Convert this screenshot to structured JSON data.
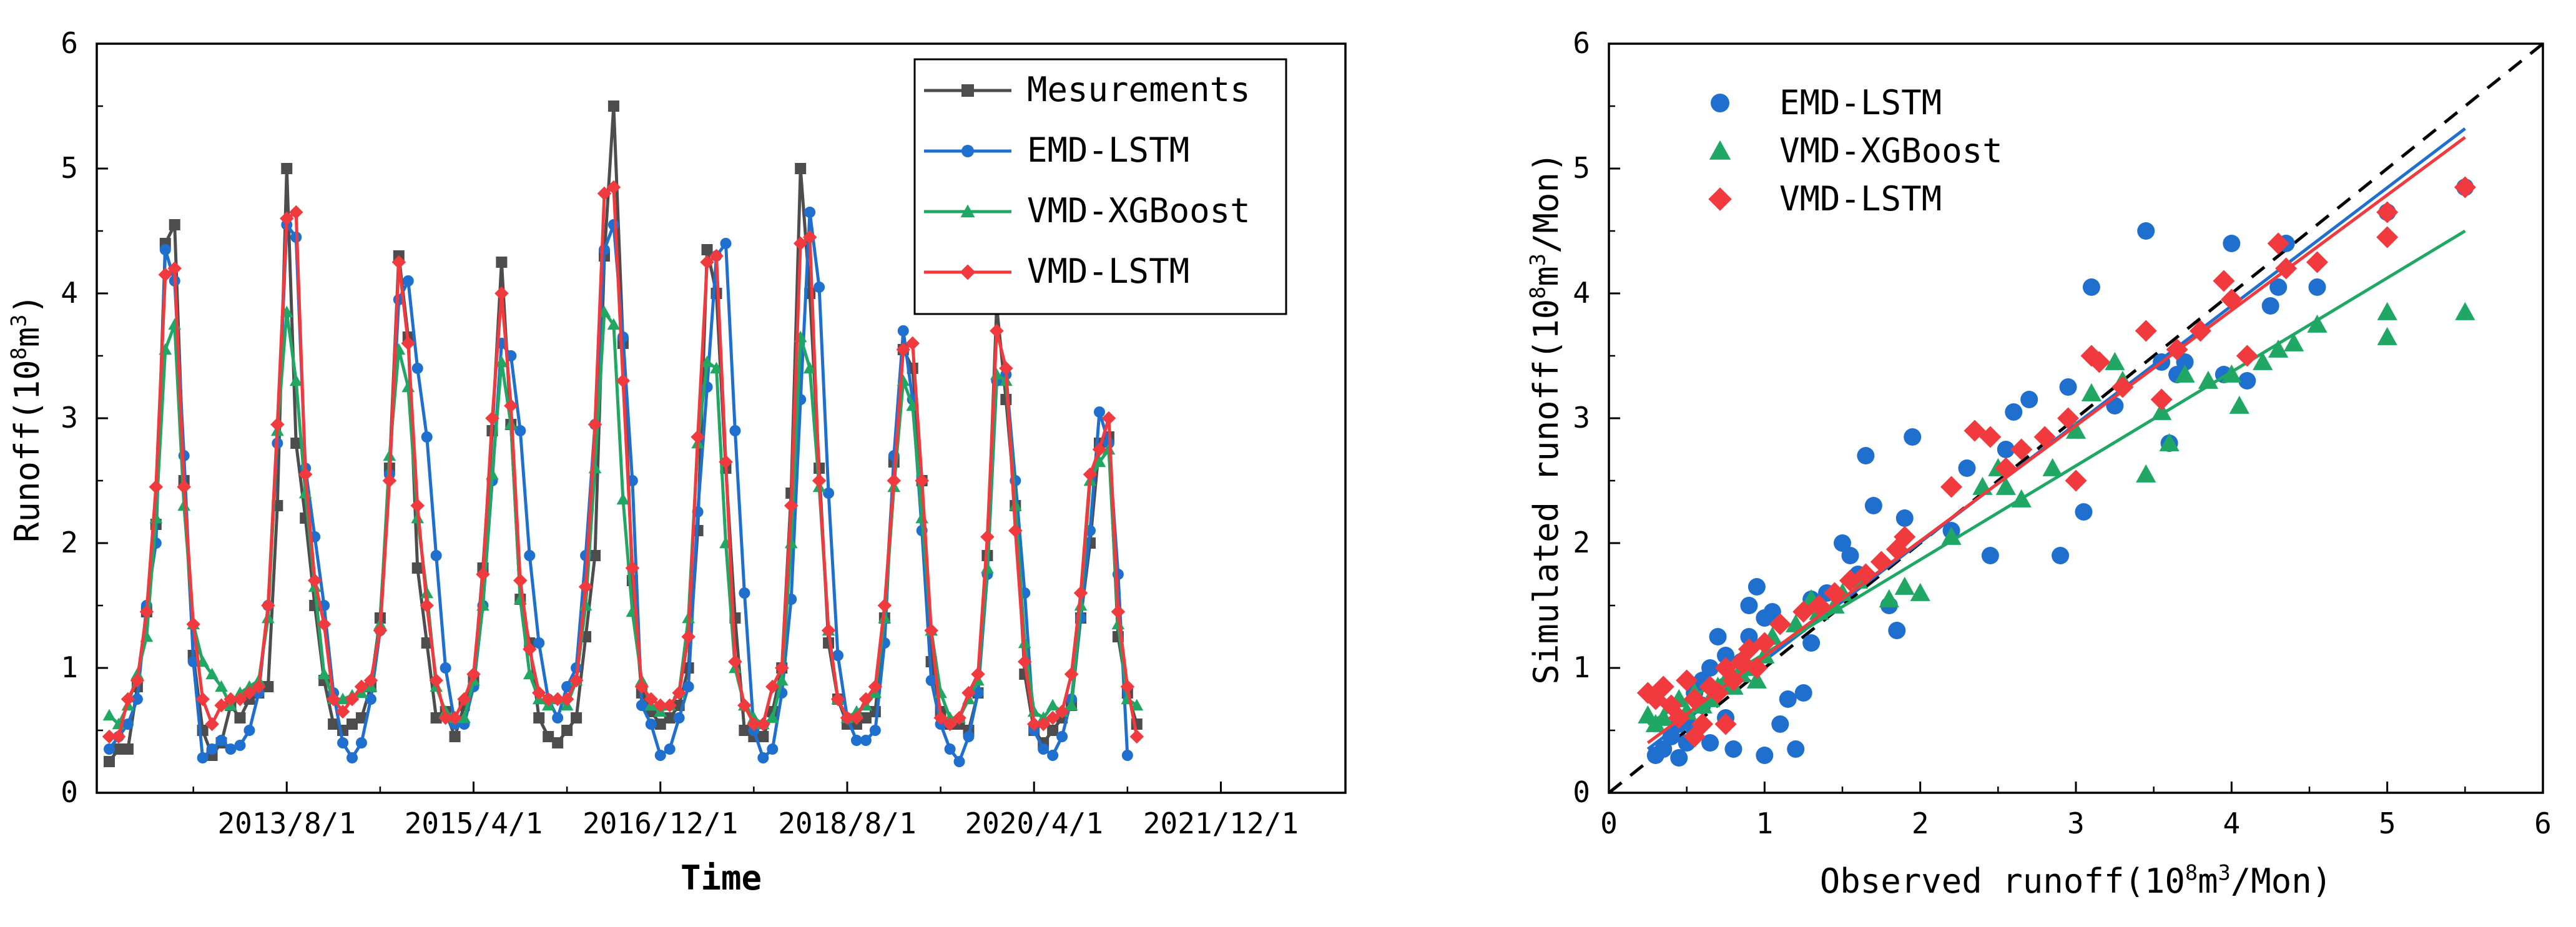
{
  "chart_data": [
    {
      "type": "line",
      "title": "",
      "xlabel": "Time",
      "ylabel": "Runoff",
      "ylabel_unit": "(10",
      "ylabel_sup": "8",
      "ylabel_end": "m",
      "ylabel_sup2": "3",
      "ylabel_close": ")",
      "ylim": [
        0,
        6
      ],
      "yticks": [
        "0",
        "1",
        "2",
        "3",
        "4",
        "5",
        "6"
      ],
      "x_index_range": [
        0,
        131
      ],
      "xticks": [
        {
          "i": 19,
          "label": "2013/8/1"
        },
        {
          "i": 39,
          "label": "2015/4/1"
        },
        {
          "i": 59,
          "label": "2016/12/1"
        },
        {
          "i": 79,
          "label": "2018/8/1"
        },
        {
          "i": 99,
          "label": "2020/4/1"
        },
        {
          "i": 119,
          "label": "2021/12/1"
        }
      ],
      "grid": false,
      "legend_position": "top-right",
      "series": [
        {
          "name": "Mesurements",
          "color": "#4d4d4d",
          "marker": "square",
          "values": [
            0.25,
            0.35,
            0.35,
            0.85,
            1.45,
            2.15,
            4.4,
            4.55,
            2.5,
            1.1,
            0.5,
            0.3,
            0.4,
            0.7,
            0.6,
            0.75,
            0.8,
            0.85,
            2.3,
            5.0,
            2.8,
            2.2,
            1.5,
            0.9,
            0.55,
            0.5,
            0.55,
            0.6,
            0.85,
            1.4,
            2.6,
            4.3,
            3.65,
            1.8,
            1.2,
            0.6,
            0.65,
            0.45,
            0.7,
            0.9,
            1.8,
            2.9,
            4.25,
            2.95,
            1.55,
            1.2,
            0.6,
            0.45,
            0.4,
            0.5,
            0.6,
            1.25,
            1.9,
            4.3,
            5.5,
            3.6,
            1.7,
            0.8,
            0.65,
            0.55,
            0.6,
            0.7,
            1.0,
            2.1,
            4.35,
            4.0,
            2.6,
            1.4,
            0.5,
            0.45,
            0.45,
            0.65,
            1.0,
            2.4,
            5.0,
            4.0,
            2.6,
            1.2,
            0.75,
            0.55,
            0.55,
            0.6,
            0.65,
            1.4,
            2.65,
            3.55,
            3.4,
            2.5,
            1.05,
            0.65,
            0.55,
            0.55,
            0.5,
            0.8,
            1.9,
            3.9,
            3.15,
            2.3,
            0.95,
            0.5,
            0.4,
            0.5,
            0.6,
            0.7,
            1.4,
            2.0,
            2.8,
            2.85,
            1.25,
            0.8,
            0.55
          ]
        },
        {
          "name": "EMD-LSTM",
          "color": "#1f6fcf",
          "marker": "circle",
          "values": [
            0.35,
            0.45,
            0.55,
            0.75,
            1.5,
            2.0,
            4.35,
            4.1,
            2.7,
            1.05,
            0.28,
            0.35,
            0.42,
            0.35,
            0.38,
            0.5,
            0.8,
            1.5,
            2.8,
            4.55,
            4.45,
            2.6,
            2.05,
            1.5,
            0.8,
            0.4,
            0.28,
            0.4,
            0.75,
            1.3,
            2.55,
            3.95,
            4.1,
            3.4,
            2.85,
            1.9,
            1.0,
            0.55,
            0.55,
            0.85,
            1.5,
            2.5,
            3.6,
            3.5,
            2.9,
            1.9,
            1.2,
            0.75,
            0.6,
            0.85,
            1.0,
            1.9,
            2.95,
            4.35,
            4.55,
            3.65,
            2.5,
            0.7,
            0.55,
            0.3,
            0.35,
            0.6,
            0.85,
            2.25,
            3.25,
            4.3,
            4.4,
            2.9,
            1.6,
            0.5,
            0.28,
            0.35,
            0.8,
            1.55,
            3.15,
            4.65,
            4.05,
            2.4,
            1.1,
            0.6,
            0.42,
            0.42,
            0.5,
            1.2,
            2.7,
            3.7,
            3.15,
            2.1,
            0.9,
            0.55,
            0.35,
            0.25,
            0.45,
            0.8,
            1.75,
            3.3,
            3.35,
            2.5,
            1.6,
            0.5,
            0.35,
            0.3,
            0.45,
            0.75,
            1.4,
            2.1,
            3.05,
            2.8,
            1.75,
            0.3
          ]
        },
        {
          "name": "VMD-XGBoost",
          "color": "#21a764",
          "marker": "triangle",
          "values": [
            0.62,
            0.55,
            0.7,
            0.95,
            1.25,
            2.2,
            3.55,
            3.75,
            2.3,
            1.35,
            1.05,
            0.95,
            0.85,
            0.7,
            0.8,
            0.85,
            0.9,
            1.4,
            2.9,
            3.85,
            3.3,
            2.4,
            1.65,
            0.95,
            0.75,
            0.75,
            0.78,
            0.8,
            0.85,
            1.35,
            2.7,
            3.55,
            3.25,
            2.2,
            1.6,
            0.85,
            0.65,
            0.6,
            0.6,
            0.9,
            1.5,
            2.55,
            3.45,
            2.95,
            1.55,
            0.95,
            0.75,
            0.7,
            0.75,
            0.7,
            0.9,
            1.5,
            2.6,
            3.85,
            3.75,
            2.35,
            1.45,
            0.9,
            0.7,
            0.65,
            0.7,
            0.8,
            1.4,
            2.8,
            3.45,
            3.4,
            2.0,
            1.0,
            0.7,
            0.6,
            0.55,
            0.6,
            0.9,
            2.0,
            3.65,
            3.4,
            2.45,
            1.3,
            0.75,
            0.6,
            0.65,
            0.7,
            0.8,
            1.4,
            2.45,
            3.3,
            3.1,
            2.2,
            1.3,
            0.8,
            0.6,
            0.6,
            0.75,
            0.9,
            1.8,
            3.35,
            3.3,
            2.3,
            1.2,
            0.65,
            0.6,
            0.7,
            0.65,
            0.7,
            1.5,
            2.5,
            2.65,
            2.75,
            1.35,
            0.75,
            0.7
          ]
        },
        {
          "name": "VMD-LSTM",
          "color": "#f03a3e",
          "marker": "diamond",
          "values": [
            0.45,
            0.45,
            0.75,
            0.9,
            1.45,
            2.45,
            4.15,
            4.2,
            2.45,
            1.35,
            0.75,
            0.55,
            0.7,
            0.75,
            0.75,
            0.8,
            0.85,
            1.5,
            2.95,
            4.6,
            4.65,
            2.55,
            1.7,
            1.35,
            0.75,
            0.65,
            0.75,
            0.85,
            0.9,
            1.3,
            2.5,
            4.25,
            3.6,
            2.3,
            1.5,
            0.9,
            0.6,
            0.6,
            0.75,
            0.95,
            1.75,
            3.0,
            4.0,
            3.1,
            1.7,
            1.15,
            0.8,
            0.75,
            0.75,
            0.75,
            0.9,
            1.65,
            2.95,
            4.8,
            4.85,
            3.3,
            1.8,
            0.85,
            0.75,
            0.7,
            0.7,
            0.8,
            1.25,
            2.85,
            4.25,
            4.3,
            2.65,
            1.05,
            0.7,
            0.55,
            0.55,
            0.85,
            1.0,
            2.3,
            4.4,
            4.45,
            2.5,
            1.3,
            0.75,
            0.6,
            0.6,
            0.75,
            0.85,
            1.5,
            2.5,
            3.55,
            3.6,
            2.5,
            1.3,
            0.6,
            0.55,
            0.6,
            0.8,
            0.95,
            2.05,
            3.7,
            3.4,
            2.1,
            1.05,
            0.55,
            0.55,
            0.6,
            0.65,
            0.95,
            1.6,
            2.55,
            2.75,
            3.0,
            1.45,
            0.85,
            0.45
          ]
        }
      ]
    },
    {
      "type": "scatter",
      "title": "",
      "xlabel": "Observed runoff",
      "xlabel_unit": "(10",
      "xlabel_sup": "8",
      "xlabel_end": "m",
      "xlabel_sup2": "3",
      "xlabel_close": "/Mon)",
      "ylabel": "Simulated runoff",
      "ylabel_unit": "(10",
      "ylabel_sup": "8",
      "ylabel_end": "m",
      "ylabel_sup2": "3",
      "ylabel_close": "/Mon)",
      "xlim": [
        0,
        6
      ],
      "ylim": [
        0,
        6
      ],
      "xticks": [
        "0",
        "1",
        "2",
        "3",
        "4",
        "5",
        "6"
      ],
      "yticks": [
        "0",
        "1",
        "2",
        "3",
        "4",
        "5",
        "6"
      ],
      "grid": false,
      "legend_position": "top-left",
      "reference_line": {
        "style": "dashed",
        "color": "#000000",
        "x": [
          0,
          6
        ],
        "y": [
          0,
          6
        ]
      },
      "series": [
        {
          "name": "EMD-LSTM",
          "color": "#1f6fcf",
          "marker": "circle",
          "fit": {
            "x": [
              0.25,
              5.5
            ],
            "y": [
              0.35,
              5.32
            ]
          },
          "x": [
            0.3,
            0.35,
            0.4,
            0.45,
            0.5,
            0.5,
            0.55,
            0.6,
            0.6,
            0.65,
            0.7,
            0.75,
            0.8,
            0.85,
            0.9,
            0.95,
            1.0,
            1.05,
            1.1,
            1.2,
            1.25,
            1.3,
            1.4,
            1.5,
            1.55,
            1.6,
            1.65,
            1.7,
            1.8,
            1.85,
            1.9,
            1.95,
            2.2,
            2.3,
            2.45,
            2.55,
            2.6,
            2.7,
            2.9,
            2.95,
            3.05,
            3.1,
            3.25,
            3.45,
            3.55,
            3.6,
            3.65,
            3.7,
            3.95,
            4.0,
            4.1,
            4.25,
            4.3,
            4.35,
            4.55,
            5.0,
            5.5,
            0.45,
            0.55,
            0.65,
            0.75,
            0.9,
            1.0,
            1.15,
            1.3
          ],
          "y": [
            0.3,
            0.35,
            0.45,
            0.28,
            0.4,
            0.6,
            0.5,
            0.9,
            0.7,
            0.4,
            1.25,
            0.6,
            0.35,
            1.05,
            1.5,
            1.65,
            0.3,
            1.45,
            0.55,
            0.35,
            0.8,
            1.2,
            1.6,
            2.0,
            1.9,
            1.75,
            2.7,
            2.3,
            1.5,
            1.3,
            2.2,
            2.85,
            2.1,
            2.6,
            1.9,
            2.75,
            3.05,
            3.15,
            1.9,
            3.25,
            2.25,
            4.05,
            3.1,
            4.5,
            3.45,
            2.8,
            3.35,
            3.45,
            3.35,
            4.4,
            3.3,
            3.9,
            4.05,
            4.4,
            4.05,
            4.65,
            4.85,
            0.55,
            0.8,
            1.0,
            1.1,
            1.25,
            1.4,
            0.75,
            1.55
          ]
        },
        {
          "name": "VMD-XGBoost",
          "color": "#21a764",
          "marker": "triangle",
          "fit": {
            "x": [
              0.25,
              5.5
            ],
            "y": [
              0.55,
              4.5
            ]
          },
          "x": [
            0.25,
            0.3,
            0.35,
            0.4,
            0.45,
            0.5,
            0.55,
            0.6,
            0.65,
            0.7,
            0.75,
            0.8,
            0.85,
            0.9,
            0.95,
            1.0,
            1.05,
            1.2,
            1.3,
            1.45,
            1.5,
            1.6,
            1.8,
            1.9,
            2.0,
            2.2,
            2.4,
            2.5,
            2.65,
            2.85,
            3.0,
            3.1,
            3.25,
            3.3,
            3.45,
            3.6,
            3.7,
            3.85,
            4.0,
            4.05,
            4.2,
            4.3,
            4.4,
            4.55,
            5.0,
            5.0,
            5.5,
            2.55,
            3.55,
            1.35
          ],
          "y": [
            0.62,
            0.55,
            0.6,
            0.7,
            0.75,
            0.65,
            0.8,
            0.7,
            0.75,
            0.85,
            0.9,
            0.85,
            0.95,
            1.0,
            0.9,
            1.1,
            1.25,
            1.35,
            1.55,
            1.5,
            1.6,
            1.7,
            1.55,
            1.65,
            1.6,
            2.05,
            2.45,
            2.6,
            2.35,
            2.6,
            2.9,
            3.2,
            3.45,
            3.3,
            2.55,
            2.8,
            3.35,
            3.3,
            3.35,
            3.1,
            3.45,
            3.55,
            3.6,
            3.75,
            3.85,
            3.65,
            3.85,
            2.45,
            3.05,
            1.45
          ]
        },
        {
          "name": "VMD-LSTM",
          "color": "#f03a3e",
          "marker": "diamond",
          "fit": {
            "x": [
              0.25,
              5.5
            ],
            "y": [
              0.4,
              5.25
            ]
          },
          "x": [
            0.25,
            0.3,
            0.35,
            0.4,
            0.45,
            0.5,
            0.55,
            0.6,
            0.65,
            0.7,
            0.75,
            0.8,
            0.85,
            0.9,
            0.95,
            1.0,
            1.1,
            1.25,
            1.35,
            1.45,
            1.55,
            1.65,
            1.75,
            1.85,
            1.9,
            2.2,
            2.35,
            2.45,
            2.55,
            2.65,
            2.8,
            2.95,
            3.0,
            3.1,
            3.15,
            3.3,
            3.45,
            3.55,
            3.65,
            3.8,
            3.95,
            4.0,
            4.1,
            4.3,
            4.35,
            4.55,
            5.0,
            5.0,
            5.5,
            0.55,
            0.75
          ],
          "y": [
            0.8,
            0.75,
            0.85,
            0.7,
            0.6,
            0.9,
            0.75,
            0.55,
            0.85,
            0.8,
            1.0,
            0.9,
            1.05,
            1.15,
            1.0,
            1.2,
            1.35,
            1.45,
            1.5,
            1.6,
            1.7,
            1.75,
            1.85,
            1.95,
            2.05,
            2.45,
            2.9,
            2.85,
            2.6,
            2.75,
            2.85,
            3.0,
            2.5,
            3.5,
            3.45,
            3.25,
            3.7,
            3.15,
            3.55,
            3.7,
            4.1,
            3.95,
            3.5,
            4.4,
            4.2,
            4.25,
            4.65,
            4.45,
            4.85,
            0.45,
            0.55
          ]
        }
      ]
    }
  ]
}
